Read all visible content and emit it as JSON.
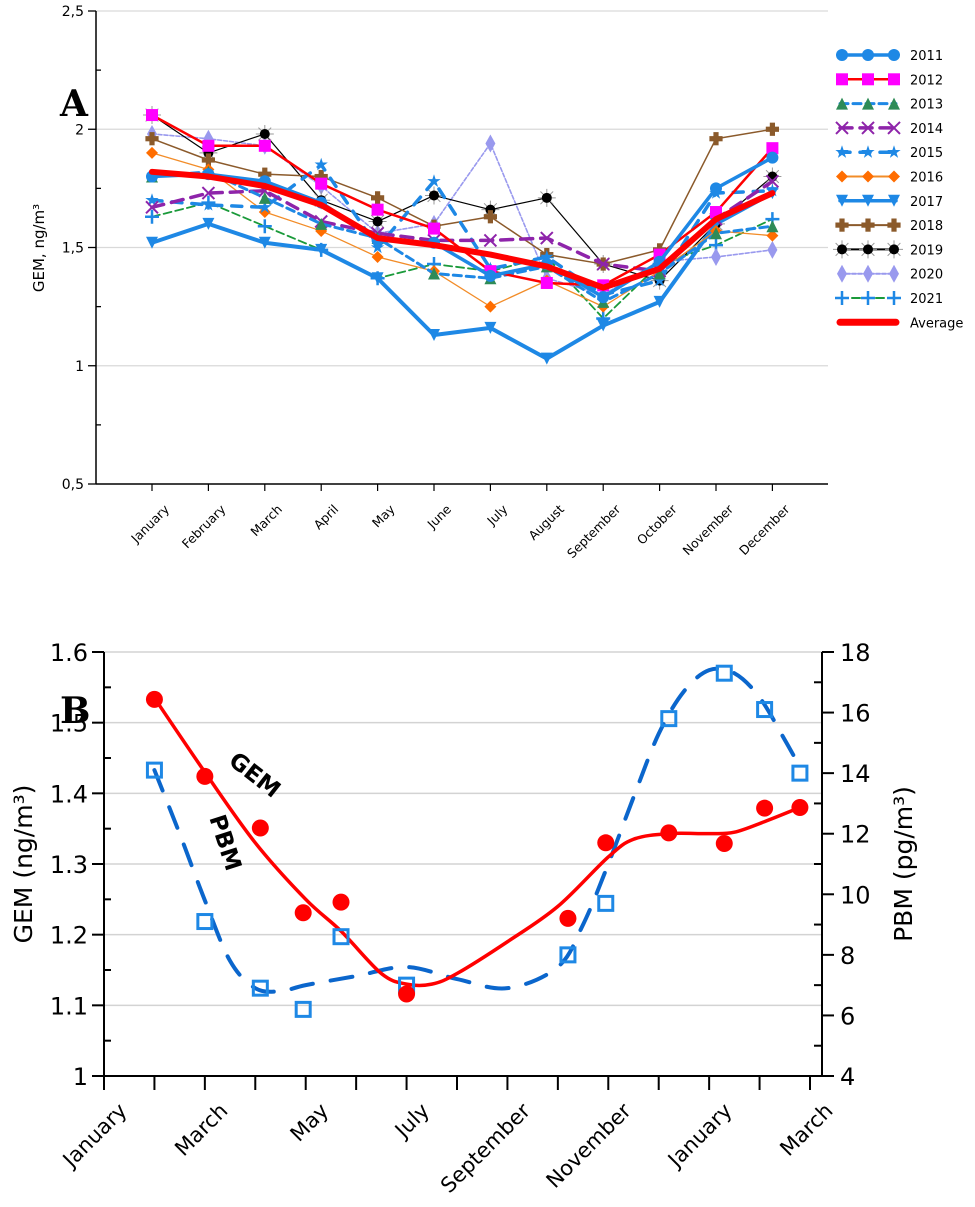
{
  "chart_data": [
    {
      "id": "A",
      "type": "line",
      "panel_label": "A",
      "title": "",
      "xlabel": "",
      "ylabel": "GEM, ng/m³",
      "ylim": [
        0.5,
        2.5
      ],
      "yticks": [
        "0,5",
        "1",
        "1,5",
        "2",
        "2,5"
      ],
      "ytick_values": [
        0.5,
        1,
        1.5,
        2,
        2.5
      ],
      "grid": true,
      "legend_position": "right",
      "categories": [
        "January",
        "February",
        "March",
        "April",
        "May",
        "June",
        "July",
        "August",
        "September",
        "October",
        "November",
        "December"
      ],
      "series": [
        {
          "name": "2011",
          "color": "#1e88e5",
          "marker": "circle",
          "values": [
            1.8,
            1.81,
            1.78,
            1.69,
            1.53,
            1.52,
            1.38,
            1.43,
            1.29,
            1.44,
            1.75,
            1.88
          ]
        },
        {
          "name": "2012",
          "color": "#ff00ff",
          "line_color": "#ff0000",
          "marker": "square",
          "values": [
            2.06,
            1.93,
            1.93,
            1.77,
            1.66,
            1.58,
            1.4,
            1.35,
            1.34,
            1.47,
            1.65,
            1.92
          ]
        },
        {
          "name": "2013",
          "color": "#2e8b57",
          "line_color": "#1e88e5",
          "marker": "triangle",
          "values": [
            1.8,
            1.82,
            1.71,
            1.6,
            1.54,
            1.39,
            1.37,
            1.42,
            1.27,
            1.39,
            1.56,
            1.59
          ]
        },
        {
          "name": "2014",
          "color": "#8e24aa",
          "marker": "x",
          "values": [
            1.67,
            1.73,
            1.74,
            1.61,
            1.56,
            1.53,
            1.53,
            1.54,
            1.43,
            1.4,
            1.62,
            1.78
          ]
        },
        {
          "name": "2015",
          "color": "#1e88e5",
          "marker": "star",
          "values": [
            1.7,
            1.68,
            1.67,
            1.85,
            1.5,
            1.78,
            1.41,
            1.46,
            1.3,
            1.36,
            1.73,
            1.74
          ]
        },
        {
          "name": "2016",
          "color": "#ff6d00",
          "line_color": "#f28c28",
          "marker": "diamond",
          "values": [
            1.9,
            1.83,
            1.65,
            1.57,
            1.46,
            1.4,
            1.25,
            1.36,
            1.25,
            1.4,
            1.57,
            1.55
          ]
        },
        {
          "name": "2017",
          "color": "#1e88e5",
          "marker": "triangle-down",
          "values": [
            1.52,
            1.6,
            1.52,
            1.49,
            1.37,
            1.13,
            1.16,
            1.03,
            1.17,
            1.27,
            1.6,
            1.73
          ]
        },
        {
          "name": "2018",
          "color": "#8b5a2b",
          "marker": "plus-square",
          "values": [
            1.96,
            1.87,
            1.81,
            1.8,
            1.71,
            1.59,
            1.63,
            1.47,
            1.43,
            1.49,
            1.96,
            2.0
          ]
        },
        {
          "name": "2019",
          "color": "#000000",
          "marker": "sun",
          "values": [
            2.06,
            1.9,
            1.98,
            1.7,
            1.61,
            1.72,
            1.66,
            1.71,
            1.43,
            1.36,
            1.6,
            1.8
          ]
        },
        {
          "name": "2020",
          "color": "#9999ee",
          "marker": "diamond-tall",
          "values": [
            1.98,
            1.96,
            1.93,
            1.76,
            1.56,
            1.6,
            1.94,
            1.37,
            1.3,
            1.44,
            1.46,
            1.49
          ]
        },
        {
          "name": "2021",
          "color": "#1e88e5",
          "line_color": "#1a9a3a",
          "marker": "plus",
          "values": [
            1.63,
            1.69,
            1.59,
            1.49,
            1.37,
            1.43,
            1.4,
            1.46,
            1.2,
            1.43,
            1.51,
            1.62
          ]
        },
        {
          "name": "Average",
          "color": "#ff0000",
          "marker": "none",
          "values": [
            1.82,
            1.8,
            1.76,
            1.68,
            1.54,
            1.51,
            1.47,
            1.42,
            1.33,
            1.41,
            1.62,
            1.73
          ]
        }
      ]
    },
    {
      "id": "B",
      "type": "scatter",
      "panel_label": "B",
      "title": "",
      "xlabel": "",
      "ylabel": "GEM (ng/m³)",
      "ylabel_right": "PBM (pg/m³)",
      "ylim": [
        1.0,
        1.6
      ],
      "ylim_right": [
        4,
        18
      ],
      "yticks": [
        "1",
        "1.1",
        "1.2",
        "1.3",
        "1.4",
        "1.5",
        "1.6"
      ],
      "ytick_values": [
        1.0,
        1.1,
        1.2,
        1.3,
        1.4,
        1.5,
        1.6
      ],
      "yticks_right": [
        "4",
        "6",
        "8",
        "10",
        "12",
        "14",
        "16",
        "18"
      ],
      "ytick_values_right": [
        4,
        6,
        8,
        10,
        12,
        14,
        16,
        18
      ],
      "grid": true,
      "xticks": [
        "January",
        "March",
        "May",
        "July",
        "September",
        "November",
        "January",
        "March"
      ],
      "x_range_months": [
        0,
        14
      ],
      "annotations": [
        {
          "text": "GEM",
          "near": "GEM curve, upper-left"
        },
        {
          "text": "PBM",
          "near": "PBM curve, upper-left"
        }
      ],
      "series": [
        {
          "name": "GEM",
          "axis": "left",
          "color": "#ff0000",
          "marker": "filled-circle",
          "fit_line": "solid smooth",
          "x": [
            1.0,
            2.0,
            3.1,
            3.95,
            4.7,
            6.0,
            9.2,
            9.95,
            11.2,
            12.3,
            13.1,
            13.8
          ],
          "values": [
            1.533,
            1.424,
            1.351,
            1.231,
            1.246,
            1.116,
            1.223,
            1.33,
            1.344,
            1.329,
            1.379,
            1.38
          ]
        },
        {
          "name": "PBM",
          "axis": "right",
          "color": "#1e88e5",
          "line_color": "#0b66cc",
          "marker": "open-square",
          "fit_line": "dashed smooth",
          "x": [
            1.0,
            2.0,
            3.1,
            3.95,
            4.7,
            6.0,
            9.2,
            9.95,
            11.2,
            12.3,
            13.1,
            13.8
          ],
          "values": [
            14.1,
            9.1,
            6.9,
            6.2,
            8.6,
            7.0,
            8.0,
            9.7,
            15.8,
            17.3,
            16.1,
            14.0
          ]
        }
      ],
      "fit_curves": {
        "GEM": {
          "x": [
            1.0,
            2.0,
            3.0,
            4.0,
            4.7,
            5.5,
            6.0,
            6.5,
            7.0,
            8.0,
            9.0,
            10.0,
            10.5,
            11.2,
            12.0,
            12.5,
            13.1,
            13.8
          ],
          "values": [
            1.535,
            1.43,
            1.33,
            1.25,
            1.205,
            1.145,
            1.13,
            1.13,
            1.145,
            1.19,
            1.24,
            1.31,
            1.335,
            1.343,
            1.343,
            1.345,
            1.36,
            1.38
          ]
        },
        "PBM": {
          "x": [
            1.0,
            1.5,
            2.0,
            2.5,
            3.0,
            3.5,
            4.0,
            5.0,
            6.0,
            7.0,
            8.0,
            9.0,
            9.5,
            10.0,
            10.5,
            11.0,
            11.5,
            12.0,
            12.5,
            13.0,
            13.5,
            13.8
          ],
          "values": [
            14.1,
            12.0,
            9.8,
            7.8,
            6.9,
            6.8,
            7.0,
            7.3,
            7.6,
            7.2,
            6.9,
            7.6,
            9.0,
            11.0,
            13.2,
            15.3,
            16.7,
            17.4,
            17.3,
            16.5,
            15.1,
            14.2
          ]
        }
      }
    }
  ]
}
